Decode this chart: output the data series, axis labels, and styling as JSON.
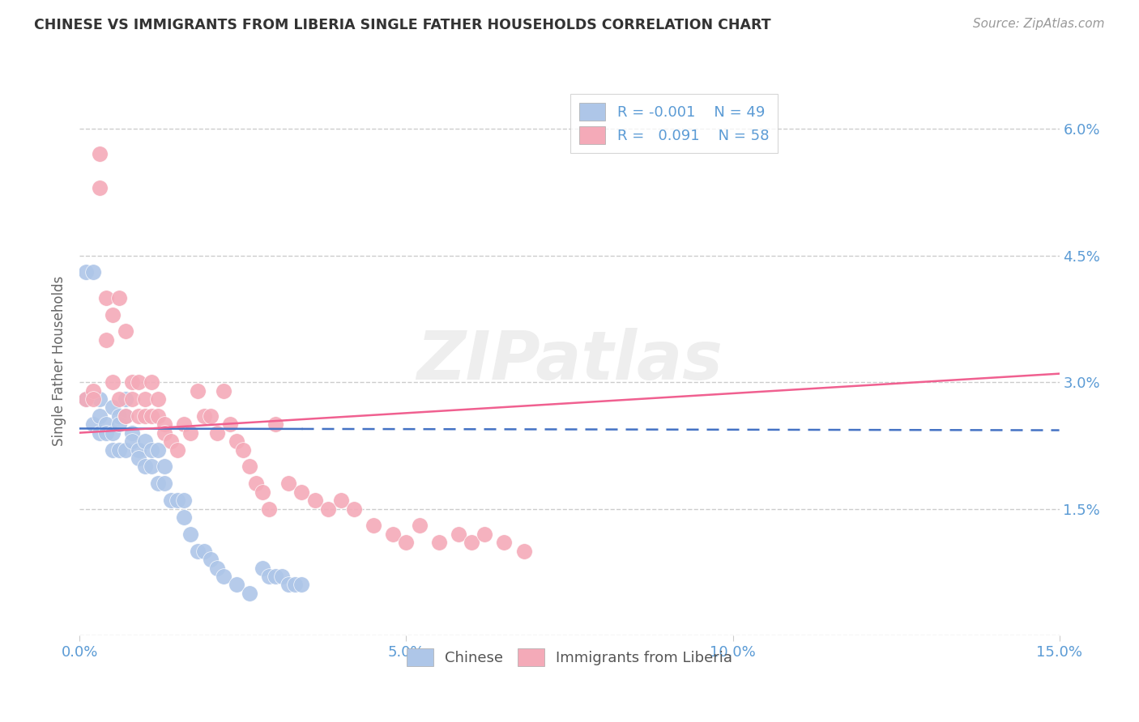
{
  "title": "CHINESE VS IMMIGRANTS FROM LIBERIA SINGLE FATHER HOUSEHOLDS CORRELATION CHART",
  "source": "Source: ZipAtlas.com",
  "ylabel": "Single Father Households",
  "xmin": 0.0,
  "xmax": 0.15,
  "ymin": 0.0,
  "ymax": 0.065,
  "ytick_vals": [
    0.0,
    0.015,
    0.03,
    0.045,
    0.06
  ],
  "ytick_labels": [
    "",
    "1.5%",
    "3.0%",
    "4.5%",
    "6.0%"
  ],
  "xtick_vals": [
    0.0,
    0.05,
    0.1,
    0.15
  ],
  "xtick_labels": [
    "0.0%",
    "5.0%",
    "10.0%",
    "15.0%"
  ],
  "grid_color": "#cccccc",
  "background_color": "#ffffff",
  "watermark": "ZIPatlas",
  "legend_R_chinese": "-0.001",
  "legend_N_chinese": "49",
  "legend_R_liberia": "0.091",
  "legend_N_liberia": "58",
  "chinese_color": "#aec6e8",
  "liberia_color": "#f4aab8",
  "chinese_line_color": "#4472c4",
  "liberia_line_color": "#f06090",
  "chinese_line_solid_end": 0.034,
  "chinese_line_y_start": 0.0245,
  "chinese_line_y_end": 0.0243,
  "liberia_line_y_start": 0.024,
  "liberia_line_y_end": 0.031,
  "chinese_x": [
    0.001,
    0.001,
    0.002,
    0.002,
    0.003,
    0.003,
    0.003,
    0.004,
    0.004,
    0.005,
    0.005,
    0.005,
    0.006,
    0.006,
    0.006,
    0.007,
    0.007,
    0.007,
    0.008,
    0.008,
    0.009,
    0.009,
    0.01,
    0.01,
    0.011,
    0.011,
    0.012,
    0.012,
    0.013,
    0.013,
    0.014,
    0.015,
    0.016,
    0.016,
    0.017,
    0.018,
    0.019,
    0.02,
    0.021,
    0.022,
    0.024,
    0.026,
    0.028,
    0.029,
    0.03,
    0.031,
    0.032,
    0.033,
    0.034
  ],
  "chinese_y": [
    0.043,
    0.028,
    0.043,
    0.025,
    0.028,
    0.026,
    0.024,
    0.025,
    0.024,
    0.027,
    0.024,
    0.022,
    0.026,
    0.025,
    0.022,
    0.028,
    0.026,
    0.022,
    0.024,
    0.023,
    0.022,
    0.021,
    0.023,
    0.02,
    0.022,
    0.02,
    0.022,
    0.018,
    0.02,
    0.018,
    0.016,
    0.016,
    0.016,
    0.014,
    0.012,
    0.01,
    0.01,
    0.009,
    0.008,
    0.007,
    0.006,
    0.005,
    0.008,
    0.007,
    0.007,
    0.007,
    0.006,
    0.006,
    0.006
  ],
  "liberia_x": [
    0.001,
    0.002,
    0.002,
    0.003,
    0.003,
    0.004,
    0.004,
    0.005,
    0.005,
    0.006,
    0.006,
    0.007,
    0.007,
    0.008,
    0.008,
    0.009,
    0.009,
    0.01,
    0.01,
    0.011,
    0.011,
    0.012,
    0.012,
    0.013,
    0.013,
    0.014,
    0.015,
    0.016,
    0.017,
    0.018,
    0.019,
    0.02,
    0.021,
    0.022,
    0.023,
    0.024,
    0.025,
    0.026,
    0.027,
    0.028,
    0.029,
    0.03,
    0.032,
    0.034,
    0.036,
    0.038,
    0.04,
    0.042,
    0.045,
    0.048,
    0.05,
    0.052,
    0.055,
    0.058,
    0.06,
    0.062,
    0.065,
    0.068
  ],
  "liberia_y": [
    0.028,
    0.029,
    0.028,
    0.057,
    0.053,
    0.04,
    0.035,
    0.038,
    0.03,
    0.04,
    0.028,
    0.036,
    0.026,
    0.03,
    0.028,
    0.03,
    0.026,
    0.028,
    0.026,
    0.03,
    0.026,
    0.028,
    0.026,
    0.025,
    0.024,
    0.023,
    0.022,
    0.025,
    0.024,
    0.029,
    0.026,
    0.026,
    0.024,
    0.029,
    0.025,
    0.023,
    0.022,
    0.02,
    0.018,
    0.017,
    0.015,
    0.025,
    0.018,
    0.017,
    0.016,
    0.015,
    0.016,
    0.015,
    0.013,
    0.012,
    0.011,
    0.013,
    0.011,
    0.012,
    0.011,
    0.012,
    0.011,
    0.01
  ]
}
